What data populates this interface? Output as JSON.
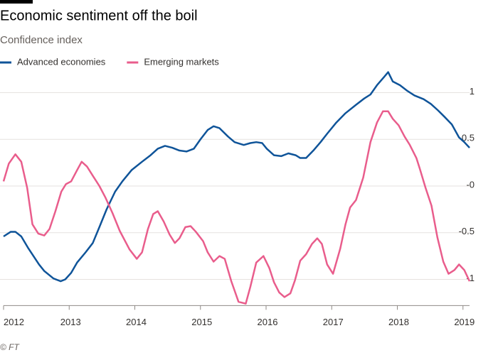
{
  "chart_data": {
    "type": "line",
    "title": "Economic sentiment off the boil",
    "subtitle": "Confidence index",
    "source": "© FT",
    "xlim": [
      2012,
      2019.1
    ],
    "xticks": [
      2012,
      2013,
      2014,
      2015,
      2016,
      2017,
      2018,
      2019
    ],
    "ylim": [
      -1.28,
      1.3
    ],
    "yticks": [
      1,
      0.5,
      {
        "value": 0,
        "label": "-0"
      },
      -0.5,
      -1
    ],
    "grid": true,
    "series": [
      {
        "name": "Advanced economies",
        "color": "#0f5499",
        "x": [
          2012,
          2012.11,
          2012.18,
          2012.27,
          2012.38,
          2012.54,
          2012.62,
          2012.76,
          2012.87,
          2012.94,
          2013.03,
          2013.12,
          2013.25,
          2013.36,
          2013.46,
          2013.57,
          2013.7,
          2013.81,
          2013.95,
          2014.11,
          2014.24,
          2014.35,
          2014.46,
          2014.57,
          2014.68,
          2014.79,
          2014.9,
          2015,
          2015.11,
          2015.2,
          2015.29,
          2015.42,
          2015.52,
          2015.66,
          2015.76,
          2015.85,
          2015.94,
          2016.01,
          2016.12,
          2016.23,
          2016.34,
          2016.45,
          2016.52,
          2016.61,
          2016.72,
          2016.83,
          2016.93,
          2017.07,
          2017.21,
          2017.37,
          2017.5,
          2017.59,
          2017.69,
          2017.8,
          2017.86,
          2017.93,
          2018.04,
          2018.15,
          2018.26,
          2018.4,
          2018.51,
          2018.62,
          2018.72,
          2018.83,
          2018.94,
          2019.02,
          2019.1
        ],
        "values": [
          -0.54,
          -0.49,
          -0.49,
          -0.54,
          -0.67,
          -0.84,
          -0.91,
          -0.99,
          -1.02,
          -1.0,
          -0.93,
          -0.82,
          -0.71,
          -0.61,
          -0.44,
          -0.25,
          -0.06,
          0.05,
          0.17,
          0.26,
          0.33,
          0.4,
          0.43,
          0.41,
          0.38,
          0.37,
          0.4,
          0.5,
          0.6,
          0.64,
          0.62,
          0.53,
          0.47,
          0.44,
          0.46,
          0.47,
          0.46,
          0.4,
          0.33,
          0.32,
          0.35,
          0.33,
          0.3,
          0.3,
          0.38,
          0.47,
          0.56,
          0.68,
          0.78,
          0.87,
          0.94,
          0.98,
          1.08,
          1.17,
          1.22,
          1.12,
          1.08,
          1.02,
          0.97,
          0.93,
          0.88,
          0.81,
          0.74,
          0.66,
          0.52,
          0.47,
          0.41
        ]
      },
      {
        "name": "Emerging markets",
        "color": "#e95d8c",
        "x": [
          2012,
          2012.08,
          2012.18,
          2012.27,
          2012.36,
          2012.44,
          2012.53,
          2012.62,
          2012.7,
          2012.79,
          2012.88,
          2012.95,
          2013.03,
          2013.12,
          2013.19,
          2013.27,
          2013.36,
          2013.46,
          2013.55,
          2013.66,
          2013.77,
          2013.92,
          2014.03,
          2014.11,
          2014.2,
          2014.28,
          2014.35,
          2014.44,
          2014.53,
          2014.61,
          2014.68,
          2014.77,
          2014.85,
          2014.93,
          2015.04,
          2015.11,
          2015.2,
          2015.29,
          2015.37,
          2015.47,
          2015.58,
          2015.69,
          2015.76,
          2015.85,
          2015.96,
          2016.05,
          2016.12,
          2016.2,
          2016.28,
          2016.37,
          2016.44,
          2016.52,
          2016.61,
          2016.7,
          2016.78,
          2016.85,
          2016.93,
          2017.02,
          2017.13,
          2017.21,
          2017.28,
          2017.37,
          2017.48,
          2017.59,
          2017.69,
          2017.78,
          2017.86,
          2017.93,
          2018.02,
          2018.11,
          2018.19,
          2018.29,
          2018.34,
          2018.43,
          2018.52,
          2018.61,
          2018.7,
          2018.78,
          2018.87,
          2018.94,
          2019.02,
          2019.1
        ],
        "values": [
          0.05,
          0.24,
          0.34,
          0.26,
          -0.02,
          -0.41,
          -0.51,
          -0.53,
          -0.46,
          -0.27,
          -0.06,
          0.02,
          0.05,
          0.17,
          0.26,
          0.21,
          0.11,
          0.0,
          -0.12,
          -0.29,
          -0.48,
          -0.68,
          -0.78,
          -0.71,
          -0.46,
          -0.3,
          -0.27,
          -0.38,
          -0.52,
          -0.61,
          -0.56,
          -0.44,
          -0.43,
          -0.49,
          -0.59,
          -0.71,
          -0.81,
          -0.75,
          -0.78,
          -1.02,
          -1.24,
          -1.26,
          -1.08,
          -0.82,
          -0.75,
          -0.88,
          -1.03,
          -1.14,
          -1.19,
          -1.15,
          -1.01,
          -0.8,
          -0.73,
          -0.62,
          -0.56,
          -0.62,
          -0.84,
          -0.94,
          -0.67,
          -0.41,
          -0.23,
          -0.15,
          0.09,
          0.47,
          0.68,
          0.8,
          0.8,
          0.72,
          0.65,
          0.53,
          0.44,
          0.3,
          0.19,
          -0.02,
          -0.21,
          -0.55,
          -0.81,
          -0.94,
          -0.9,
          -0.84,
          -0.9,
          -1.02
        ]
      }
    ]
  }
}
